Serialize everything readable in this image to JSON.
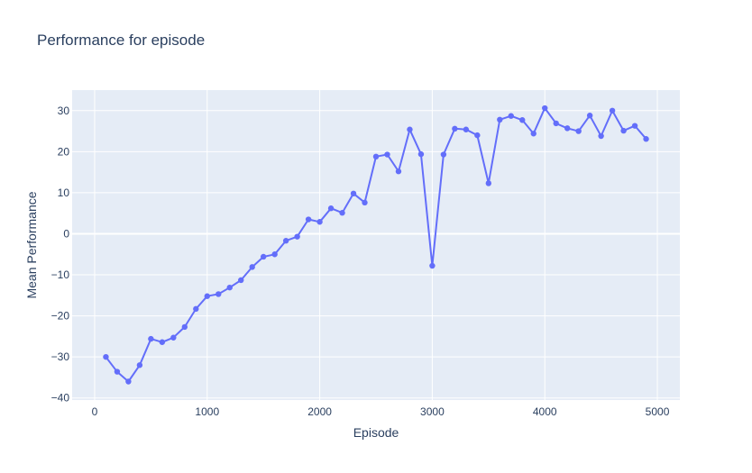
{
  "chart_data": {
    "type": "line",
    "title": "Performance for episode",
    "xlabel": "Episode",
    "ylabel": "Mean Performance",
    "xlim": [
      -200,
      5200
    ],
    "ylim": [
      -40.5,
      35
    ],
    "x_ticks": [
      0,
      1000,
      2000,
      3000,
      4000,
      5000
    ],
    "x_tick_labels": [
      "0",
      "1000",
      "2000",
      "3000",
      "4000",
      "5000"
    ],
    "y_ticks": [
      -40,
      -30,
      -20,
      -10,
      0,
      10,
      20,
      30
    ],
    "y_tick_labels": [
      "−40",
      "−30",
      "−20",
      "−10",
      "0",
      "10",
      "20",
      "30"
    ],
    "grid": true,
    "colors": {
      "plot_bg": "#e5ecf6",
      "grid": "#ffffff",
      "line": "#636efa",
      "text": "#2a3f5f"
    },
    "x": [
      100,
      200,
      300,
      400,
      500,
      600,
      700,
      800,
      900,
      1000,
      1100,
      1200,
      1300,
      1400,
      1500,
      1600,
      1700,
      1800,
      1900,
      2000,
      2100,
      2200,
      2300,
      2400,
      2500,
      2600,
      2700,
      2800,
      2900,
      3000,
      3100,
      3200,
      3300,
      3400,
      3500,
      3600,
      3700,
      3800,
      3900,
      4000,
      4100,
      4200,
      4300,
      4400,
      4500,
      4600,
      4700,
      4800,
      4900
    ],
    "series": [
      {
        "values": [
          -30.0,
          -33.6,
          -36.0,
          -32.0,
          -25.6,
          -26.4,
          -25.3,
          -22.7,
          -18.3,
          -15.2,
          -14.7,
          -13.1,
          -11.3,
          -8.1,
          -5.6,
          -5.0,
          -1.7,
          -0.7,
          3.5,
          2.9,
          6.2,
          5.1,
          9.8,
          7.6,
          18.8,
          19.3,
          15.2,
          25.4,
          19.4,
          -7.8,
          19.3,
          25.6,
          25.4,
          24.0,
          12.3,
          27.8,
          28.7,
          27.7,
          24.4,
          30.6,
          26.9,
          25.7,
          25.0,
          28.8,
          23.8,
          30.0,
          25.1,
          26.3,
          23.1
        ]
      }
    ]
  }
}
